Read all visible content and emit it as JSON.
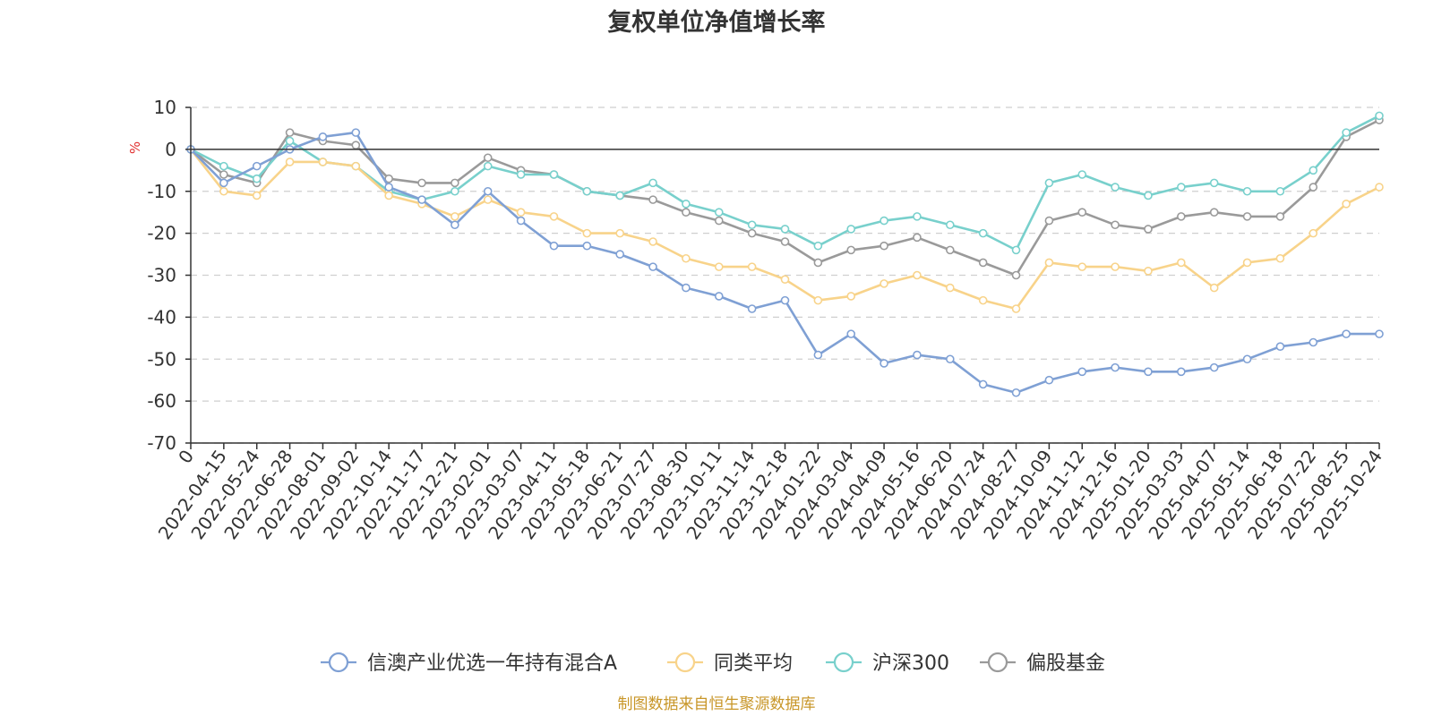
{
  "chart_data": {
    "type": "line",
    "title": "复权单位净值增长率",
    "ylabel": "%",
    "ylim": [
      -70,
      10
    ],
    "yticks": [
      10,
      0,
      -10,
      -20,
      -30,
      -40,
      -50,
      -60,
      -70
    ],
    "categories": [
      "0",
      "2022-04-15",
      "2022-05-24",
      "2022-06-28",
      "2022-08-01",
      "2022-09-02",
      "2022-10-14",
      "2022-11-17",
      "2022-12-21",
      "2023-02-01",
      "2023-03-07",
      "2023-04-11",
      "2023-05-18",
      "2023-06-21",
      "2023-07-27",
      "2023-08-30",
      "2023-10-11",
      "2023-11-14",
      "2023-12-18",
      "2024-01-22",
      "2024-03-04",
      "2024-04-09",
      "2024-05-16",
      "2024-06-20",
      "2024-07-24",
      "2024-08-27",
      "2024-10-09",
      "2024-11-12",
      "2024-12-16",
      "2025-01-20",
      "2025-03-03",
      "2025-04-07",
      "2025-05-14",
      "2025-06-18",
      "2025-07-22",
      "2025-08-25",
      "2025-10-24"
    ],
    "series": [
      {
        "name": "信澳产业优选一年持有混合A",
        "color": "#7fa0d4",
        "values": [
          0,
          -8,
          -4,
          0,
          3,
          4,
          -9,
          -12,
          -18,
          -10,
          -17,
          -23,
          -23,
          -25,
          -28,
          -33,
          -35,
          -38,
          -36,
          -49,
          -44,
          -51,
          -49,
          -50,
          -56,
          -58,
          -55,
          -53,
          -52,
          -53,
          -53,
          -52,
          -50,
          -47,
          -46,
          -44,
          -44
        ]
      },
      {
        "name": "同类平均",
        "color": "#f8d38a",
        "values": [
          0,
          -10,
          -11,
          -3,
          -3,
          -4,
          -11,
          -13,
          -16,
          -12,
          -15,
          -16,
          -20,
          -20,
          -22,
          -26,
          -28,
          -28,
          -31,
          -36,
          -35,
          -32,
          -30,
          -33,
          -36,
          -38,
          -27,
          -28,
          -28,
          -29,
          -27,
          -33,
          -27,
          -26,
          -20,
          -13,
          -9
        ]
      },
      {
        "name": "沪深300",
        "color": "#78d0cc",
        "values": [
          0,
          -4,
          -7,
          2,
          -3,
          -4,
          -10,
          -12,
          -10,
          -4,
          -6,
          -6,
          -10,
          -11,
          -8,
          -13,
          -15,
          -18,
          -19,
          -23,
          -19,
          -17,
          -16,
          -18,
          -20,
          -24,
          -8,
          -6,
          -9,
          -11,
          -9,
          -8,
          -10,
          -10,
          -5,
          4,
          8
        ]
      },
      {
        "name": "偏股基金",
        "color": "#9a9a9a",
        "values": [
          0,
          -6,
          -8,
          4,
          2,
          1,
          -7,
          -8,
          -8,
          -2,
          -5,
          -6,
          -10,
          -11,
          -12,
          -15,
          -17,
          -20,
          -22,
          -27,
          -24,
          -23,
          -21,
          -24,
          -27,
          -30,
          -17,
          -15,
          -18,
          -19,
          -16,
          -15,
          -16,
          -16,
          -9,
          3,
          7
        ]
      }
    ],
    "legend_position": "bottom"
  },
  "footer": {
    "source": "制图数据来自恒生聚源数据库"
  }
}
